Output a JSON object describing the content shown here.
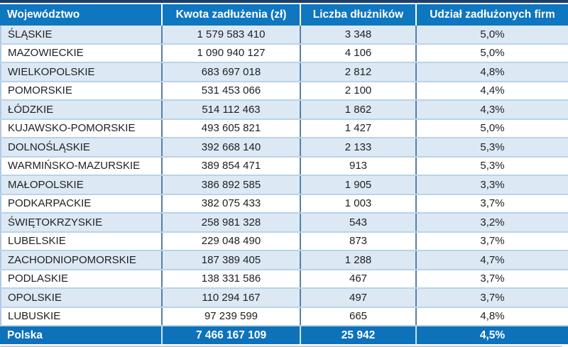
{
  "colors": {
    "header_bg": "#0f76c0",
    "footer_bg": "#0e72bb",
    "row_alt_bg": "#dce9f5",
    "row_bg": "#ffffff",
    "row_border": "#b9d3e8",
    "column_divider": "#567fa6",
    "top_accent": "#1b3f69",
    "header_text": "#ffffff",
    "data_text": "#1f1f1f"
  },
  "table": {
    "columns": [
      "Województwo",
      "Kwota zadłużenia (zł)",
      "Liczba dłużników",
      "Udział zadłużonych firm"
    ],
    "rows": [
      {
        "region": "ŚLĄSKIE",
        "amount": "1 579 583 410",
        "debtors": "3 348",
        "share": "5,0%"
      },
      {
        "region": "MAZOWIECKIE",
        "amount": "1 090 940 127",
        "debtors": "4 106",
        "share": "5,0%"
      },
      {
        "region": "WIELKOPOLSKIE",
        "amount": "683 697 018",
        "debtors": "2 812",
        "share": "4,8%"
      },
      {
        "region": "POMORSKIE",
        "amount": "531 453 066",
        "debtors": "2 100",
        "share": "4,4%"
      },
      {
        "region": "ŁÓDZKIE",
        "amount": "514 112 463",
        "debtors": "1 862",
        "share": "4,3%"
      },
      {
        "region": "KUJAWSKO-POMORSKIE",
        "amount": "493 605 821",
        "debtors": "1 427",
        "share": "5,0%"
      },
      {
        "region": "DOLNOŚLĄSKIE",
        "amount": "392 668 140",
        "debtors": "2 133",
        "share": "5,3%"
      },
      {
        "region": "WARMIŃSKO-MAZURSKIE",
        "amount": "389 854 471",
        "debtors": "913",
        "share": "5,3%"
      },
      {
        "region": "MAŁOPOLSKIE",
        "amount": "386 892 585",
        "debtors": "1 905",
        "share": "3,3%"
      },
      {
        "region": "PODKARPACKIE",
        "amount": "382 075 433",
        "debtors": "1 003",
        "share": "3,7%"
      },
      {
        "region": "ŚWIĘTOKRZYSKIE",
        "amount": "258 981 328",
        "debtors": "543",
        "share": "3,2%"
      },
      {
        "region": "LUBELSKIE",
        "amount": "229 048 490",
        "debtors": "873",
        "share": "3,7%"
      },
      {
        "region": "ZACHODNIOPOMORSKIE",
        "amount": "187 389 405",
        "debtors": "1 288",
        "share": "4,7%"
      },
      {
        "region": "PODLASKIE",
        "amount": "138 331 586",
        "debtors": "467",
        "share": "3,7%"
      },
      {
        "region": "OPOLSKIE",
        "amount": "110 294 167",
        "debtors": "497",
        "share": "3,7%"
      },
      {
        "region": "LUBUSKIE",
        "amount": "97 239 599",
        "debtors": "665",
        "share": "4,8%"
      }
    ],
    "footer": {
      "region": "Polska",
      "amount": "7 466 167 109",
      "debtors": "25 942",
      "share": "4,5%"
    }
  },
  "chart_data": {
    "type": "table",
    "title": "",
    "columns": [
      "Województwo",
      "Kwota zadłużenia (zł)",
      "Liczba dłużników",
      "Udział zadłużonych firm"
    ],
    "rows": [
      [
        "ŚLĄSKIE",
        1579583410,
        3348,
        "5,0%"
      ],
      [
        "MAZOWIECKIE",
        1090940127,
        4106,
        "5,0%"
      ],
      [
        "WIELKOPOLSKIE",
        683697018,
        2812,
        "4,8%"
      ],
      [
        "POMORSKIE",
        531453066,
        2100,
        "4,4%"
      ],
      [
        "ŁÓDZKIE",
        514112463,
        1862,
        "4,3%"
      ],
      [
        "KUJAWSKO-POMORSKIE",
        493605821,
        1427,
        "5,0%"
      ],
      [
        "DOLNOŚLĄSKIE",
        392668140,
        2133,
        "5,3%"
      ],
      [
        "WARMIŃSKO-MAZURSKIE",
        389854471,
        913,
        "5,3%"
      ],
      [
        "MAŁOPOLSKIE",
        386892585,
        1905,
        "3,3%"
      ],
      [
        "PODKARPACKIE",
        382075433,
        1003,
        "3,7%"
      ],
      [
        "ŚWIĘTOKRZYSKIE",
        258981328,
        543,
        "3,2%"
      ],
      [
        "LUBELSKIE",
        229048490,
        873,
        "3,7%"
      ],
      [
        "ZACHODNIOPOMORSKIE",
        187389405,
        1288,
        "4,7%"
      ],
      [
        "PODLASKIE",
        138331586,
        467,
        "3,7%"
      ],
      [
        "OPOLSKIE",
        110294167,
        497,
        "3,7%"
      ],
      [
        "LUBUSKIE",
        97239599,
        665,
        "4,8%"
      ]
    ],
    "totals_row": [
      "Polska",
      7466167109,
      25942,
      "4,5%"
    ]
  }
}
